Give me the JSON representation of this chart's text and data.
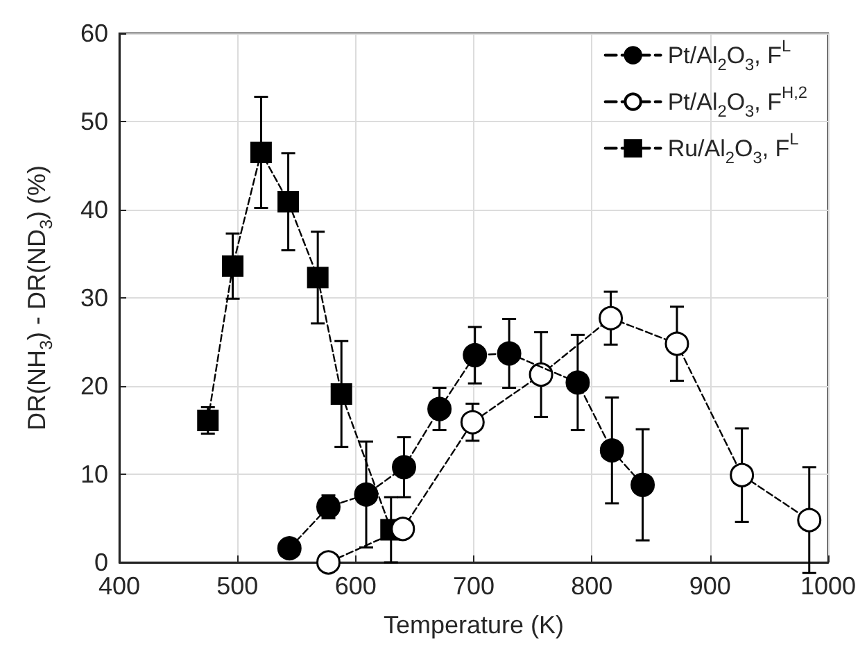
{
  "chart_data": {
    "type": "line",
    "xlabel": "Temperature (K)",
    "ylabel": "DR(NH$_{3}$) - DR(ND$_{3}$) (%)",
    "xlim": [
      400,
      1000
    ],
    "xticks": [
      400,
      500,
      600,
      700,
      800,
      900,
      1000
    ],
    "ylim": [
      0,
      60
    ],
    "yticks": [
      0,
      10,
      20,
      30,
      40,
      50,
      60
    ],
    "grid": true,
    "legend": "top right",
    "line_style": "dashed",
    "series": [
      {
        "name": "Pt/Al$_{2}$O$_{3}$, F$^{L}$",
        "color": "#000000",
        "marker": "circle",
        "x": [
          544,
          577,
          609,
          641,
          671,
          701,
          730,
          788,
          817,
          843
        ],
        "values": [
          1.6,
          6.3,
          7.7,
          10.8,
          17.4,
          23.5,
          23.7,
          20.4,
          12.7,
          8.8
        ],
        "errors": [
          null,
          1.3,
          6,
          3.4,
          2.4,
          3.2,
          3.9,
          5.4,
          6,
          6.3
        ]
      },
      {
        "name": "Pt/Al$_{2}$O$_{3}$, F$^{H,2}$",
        "color": "#ffffff",
        "marker": "circle",
        "x": [
          577,
          640,
          699,
          757,
          816,
          872,
          927,
          984
        ],
        "values": [
          0,
          3.8,
          15.9,
          21.3,
          27.7,
          24.8,
          9.9,
          4.8
        ],
        "errors": [
          null,
          null,
          2.1,
          4.8,
          3,
          4.2,
          5.3,
          6
        ]
      },
      {
        "name": "Ru/Al$_{2}$O$_{3}$, F$^{L}$",
        "color": "#000000",
        "marker": "square",
        "x": [
          475,
          496,
          520,
          543,
          568,
          588,
          630
        ],
        "values": [
          16.1,
          33.6,
          46.5,
          40.9,
          32.3,
          19.1,
          3.7
        ],
        "errors": [
          1.5,
          3.7,
          6.3,
          5.5,
          5.2,
          6,
          3.7
        ]
      }
    ]
  }
}
